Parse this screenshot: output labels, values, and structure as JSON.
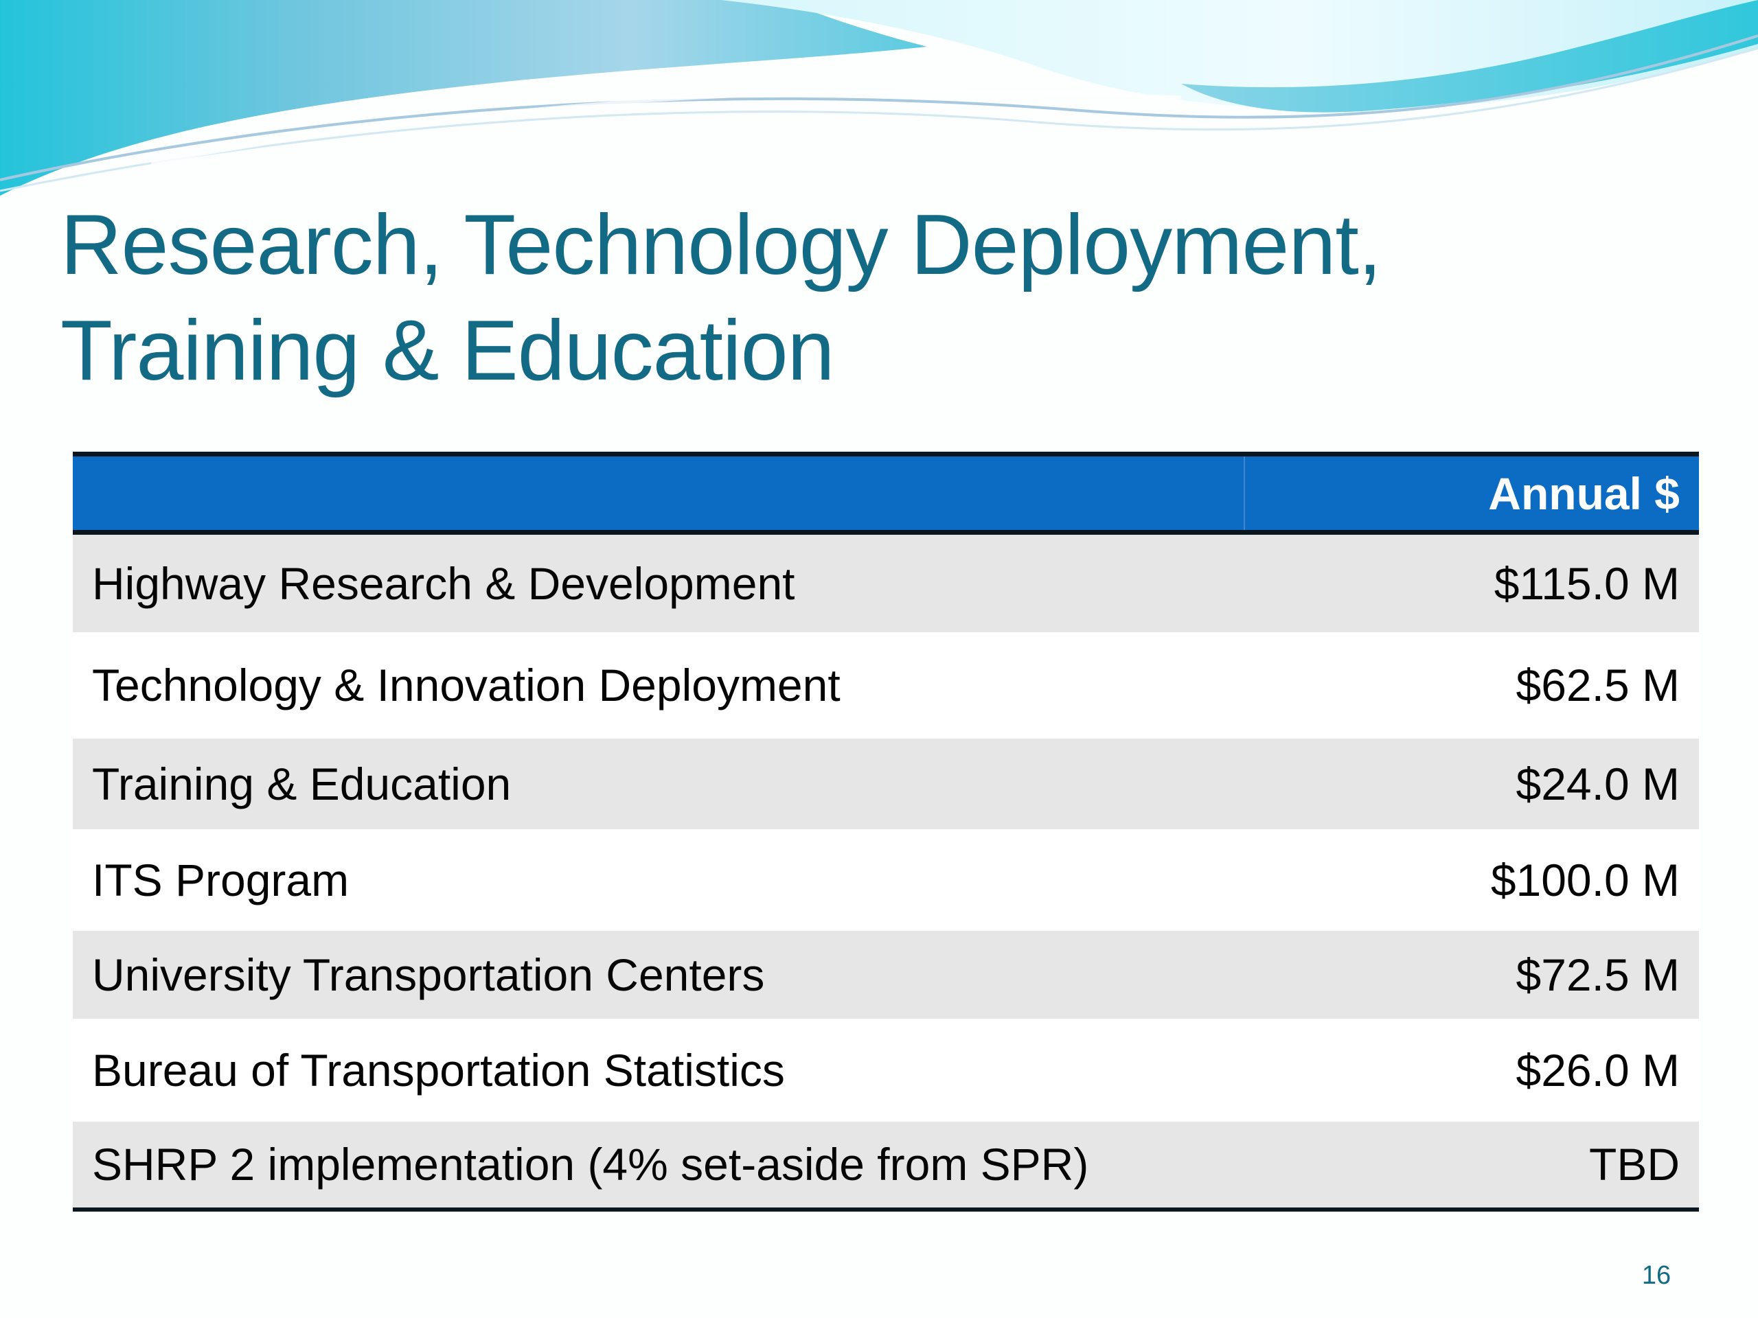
{
  "title": {
    "line1": "Research, Technology Deployment,",
    "line2": "Training & Education"
  },
  "table": {
    "columns": [
      "",
      "Annual $"
    ],
    "rows": [
      {
        "label": "Highway Research & Development",
        "value": "$115.0 M"
      },
      {
        "label": "Technology & Innovation Deployment",
        "value": "$62.5 M"
      },
      {
        "label": "Training & Education",
        "value": "$24.0 M"
      },
      {
        "label": "ITS Program",
        "value": "$100.0 M"
      },
      {
        "label": "University Transportation Centers",
        "value": "$72.5 M"
      },
      {
        "label": "Bureau of Transportation Statistics",
        "value": "$26.0 M"
      },
      {
        "label": "SHRP 2 implementation (4% set-aside from SPR)",
        "value": "TBD"
      }
    ]
  },
  "page_number": "16",
  "colors": {
    "title": "#136a85",
    "header_background": "#0c6cc3",
    "header_text": "#ffffff",
    "row_shaded": "#e6e6e6",
    "rule": "#0b1720",
    "wave_light": "#dff8fb",
    "wave_mid": "#78c8df",
    "wave_deep": "#27bbd8"
  }
}
